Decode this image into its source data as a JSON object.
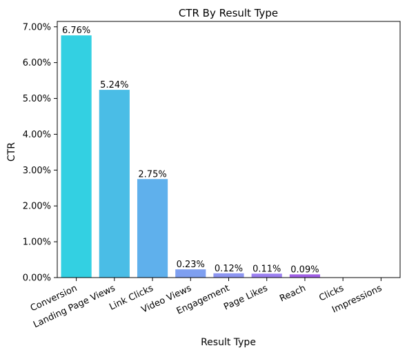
{
  "chart_data": {
    "type": "bar",
    "title": "CTR By Result Type",
    "xlabel": "Result Type",
    "ylabel": "CTR",
    "categories": [
      "Conversion",
      "Landing Page Views",
      "Link Clicks",
      "Video Views",
      "Engagement",
      "Page Likes",
      "Reach",
      "Clicks",
      "Impressions"
    ],
    "values": [
      6.76,
      5.24,
      2.75,
      0.23,
      0.12,
      0.11,
      0.09,
      0,
      0
    ],
    "data_labels": [
      "6.76%",
      "5.24%",
      "2.75%",
      "0.23%",
      "0.12%",
      "0.11%",
      "0.09%",
      "",
      ""
    ],
    "ylim": [
      0,
      7.0
    ],
    "yticks": [
      0,
      1,
      2,
      3,
      4,
      5,
      6,
      7
    ],
    "ytick_labels": [
      "0.00%",
      "1.00%",
      "2.00%",
      "3.00%",
      "4.00%",
      "5.00%",
      "6.00%",
      "7.00%"
    ],
    "colors": [
      "#33d0e2",
      "#4abde6",
      "#5fb0ec",
      "#7e9ff0",
      "#8c95f1",
      "#9b7ff0",
      "#a060e6",
      "#b050e0",
      "#c040d8"
    ],
    "grid": false,
    "legend": "none"
  }
}
